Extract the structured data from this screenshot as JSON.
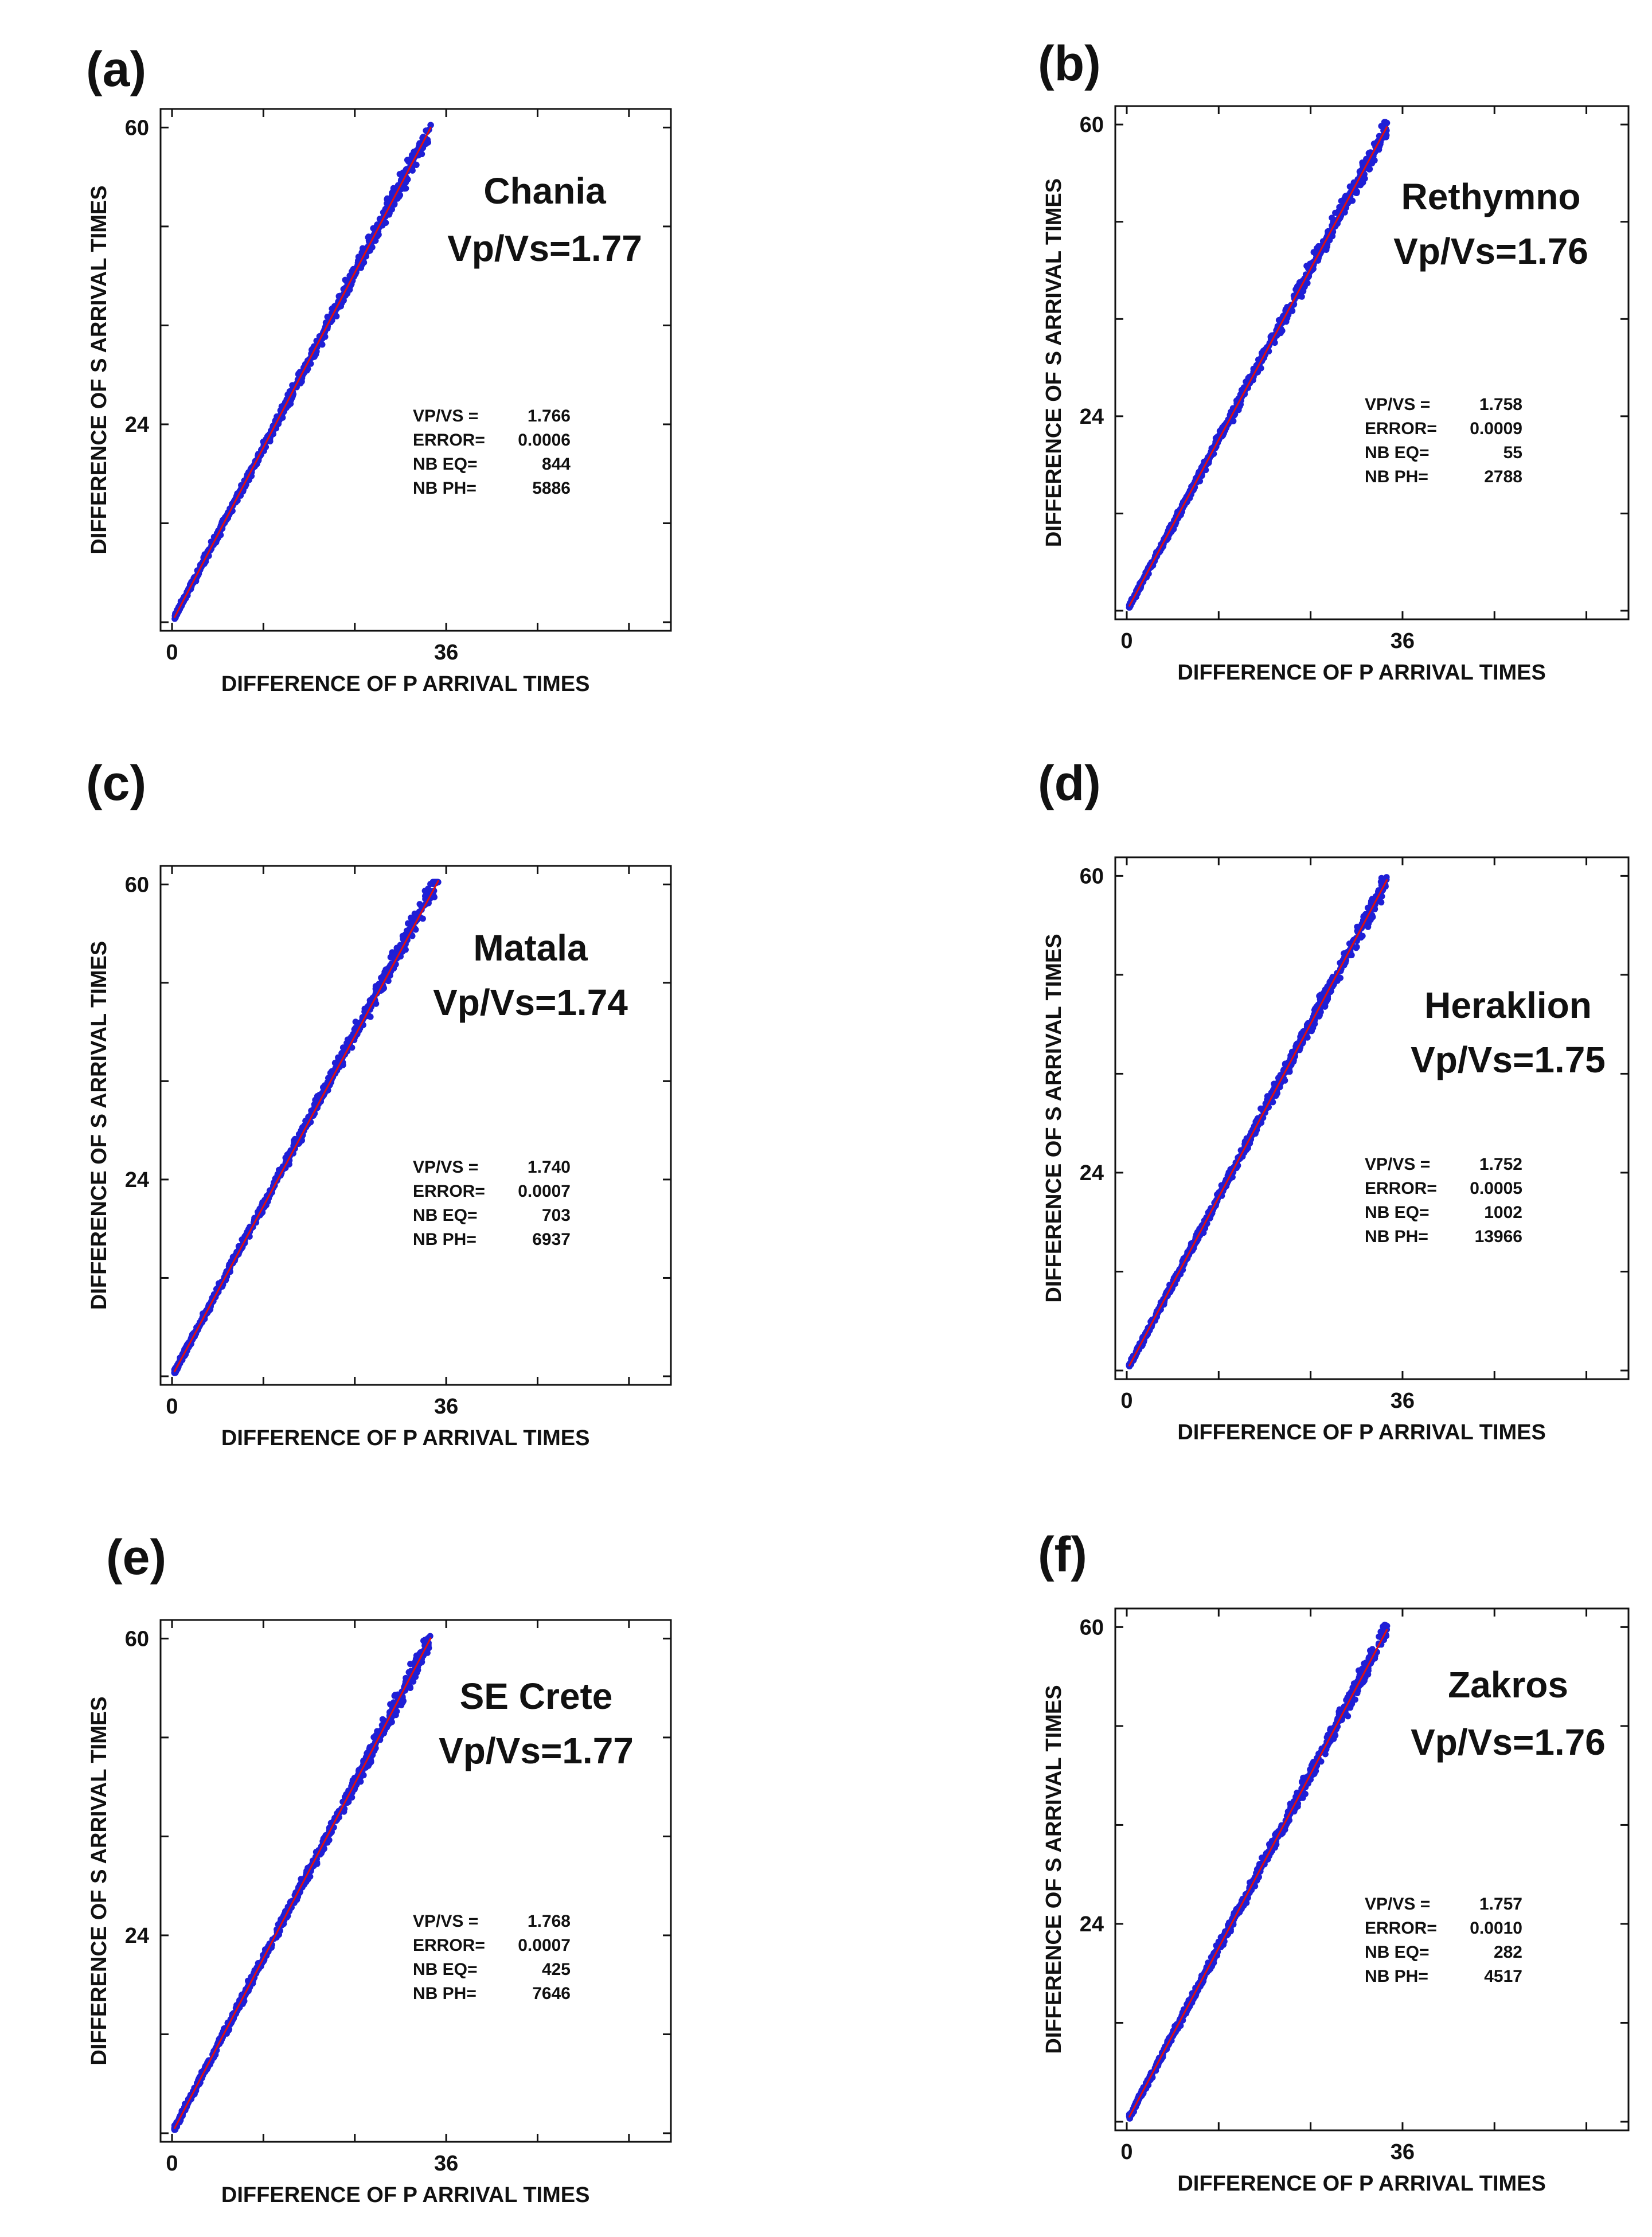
{
  "colors": {
    "points": "#1f1fd6",
    "fit_line": "#e01010",
    "frame": "#111111",
    "text": "#111111"
  },
  "chart_data": [
    {
      "type": "scatter",
      "panel": "(a)",
      "site": "Chania",
      "headline": "Vp/Vs=1.77",
      "xlabel": "DIFFERENCE OF P ARRIVAL TIMES",
      "ylabel": "DIFFERENCE OF S ARRIVAL TIMES",
      "xticks": [
        "0",
        "36"
      ],
      "yticks": [
        "24",
        "60"
      ],
      "xlim": [
        0,
        64
      ],
      "ylim": [
        0,
        61
      ],
      "fit_slope": 1.766,
      "max_x": 34,
      "stats": {
        "vpvs_label": "VP/VS =",
        "vpvs": "1.766",
        "error_label": "ERROR=",
        "error": "0.0006",
        "nbeq_label": "NB EQ=",
        "nbeq": "844",
        "nbph_label": "NB PH=",
        "nbph": "5886"
      }
    },
    {
      "type": "scatter",
      "panel": "(b)",
      "site": "Rethymno",
      "headline": "Vp/Vs=1.76",
      "xlabel": "DIFFERENCE OF P ARRIVAL TIMES",
      "ylabel": "DIFFERENCE OF S ARRIVAL TIMES",
      "xticks": [
        "0",
        "36"
      ],
      "yticks": [
        "24",
        "60"
      ],
      "xlim": [
        0,
        64
      ],
      "ylim": [
        0,
        61
      ],
      "fit_slope": 1.758,
      "max_x": 34,
      "stats": {
        "vpvs_label": "VP/VS =",
        "vpvs": "1.758",
        "error_label": "ERROR=",
        "error": "0.0009",
        "nbeq_label": "NB EQ=",
        "nbeq": "55",
        "nbph_label": "NB PH=",
        "nbph": "2788"
      }
    },
    {
      "type": "scatter",
      "panel": "(c)",
      "site": "Matala",
      "headline": "Vp/Vs=1.74",
      "xlabel": "DIFFERENCE OF P ARRIVAL TIMES",
      "ylabel": "DIFFERENCE OF S ARRIVAL TIMES",
      "xticks": [
        "0",
        "36"
      ],
      "yticks": [
        "24",
        "60"
      ],
      "xlim": [
        0,
        64
      ],
      "ylim": [
        0,
        61
      ],
      "fit_slope": 1.74,
      "max_x": 35,
      "stats": {
        "vpvs_label": "VP/VS =",
        "vpvs": "1.740",
        "error_label": "ERROR=",
        "error": "0.0007",
        "nbeq_label": "NB EQ=",
        "nbeq": "703",
        "nbph_label": "NB PH=",
        "nbph": "6937"
      }
    },
    {
      "type": "scatter",
      "panel": "(d)",
      "site": "Heraklion",
      "headline": "Vp/Vs=1.75",
      "xlabel": "DIFFERENCE OF P ARRIVAL TIMES",
      "ylabel": "DIFFERENCE OF S ARRIVAL TIMES",
      "xticks": [
        "0",
        "36"
      ],
      "yticks": [
        "24",
        "60"
      ],
      "xlim": [
        0,
        64
      ],
      "ylim": [
        0,
        61
      ],
      "fit_slope": 1.752,
      "max_x": 34,
      "stats": {
        "vpvs_label": "VP/VS =",
        "vpvs": "1.752",
        "error_label": "ERROR=",
        "error": "0.0005",
        "nbeq_label": "NB EQ=",
        "nbeq": "1002",
        "nbph_label": "NB PH=",
        "nbph": "13966"
      }
    },
    {
      "type": "scatter",
      "panel": "(e)",
      "site": "SE Crete",
      "headline": "Vp/Vs=1.77",
      "xlabel": "DIFFERENCE OF P ARRIVAL TIMES",
      "ylabel": "DIFFERENCE OF S ARRIVAL TIMES",
      "xticks": [
        "0",
        "36"
      ],
      "yticks": [
        "24",
        "60"
      ],
      "xlim": [
        0,
        64
      ],
      "ylim": [
        0,
        61
      ],
      "fit_slope": 1.768,
      "max_x": 34,
      "stats": {
        "vpvs_label": "VP/VS =",
        "vpvs": "1.768",
        "error_label": "ERROR=",
        "error": "0.0007",
        "nbeq_label": "NB EQ=",
        "nbeq": "425",
        "nbph_label": "NB PH=",
        "nbph": "7646"
      }
    },
    {
      "type": "scatter",
      "panel": "(f)",
      "site": "Zakros",
      "headline": "Vp/Vs=1.76",
      "xlabel": "DIFFERENCE OF P ARRIVAL TIMES",
      "ylabel": "DIFFERENCE OF S ARRIVAL TIMES",
      "xticks": [
        "0",
        "36"
      ],
      "yticks": [
        "24",
        "60"
      ],
      "xlim": [
        0,
        64
      ],
      "ylim": [
        0,
        61
      ],
      "fit_slope": 1.757,
      "max_x": 34,
      "stats": {
        "vpvs_label": "VP/VS =",
        "vpvs": "1.757",
        "error_label": "ERROR=",
        "error": "0.0010",
        "nbeq_label": "NB EQ=",
        "nbeq": "282",
        "nbph_label": "NB PH=",
        "nbph": "4517"
      }
    }
  ]
}
